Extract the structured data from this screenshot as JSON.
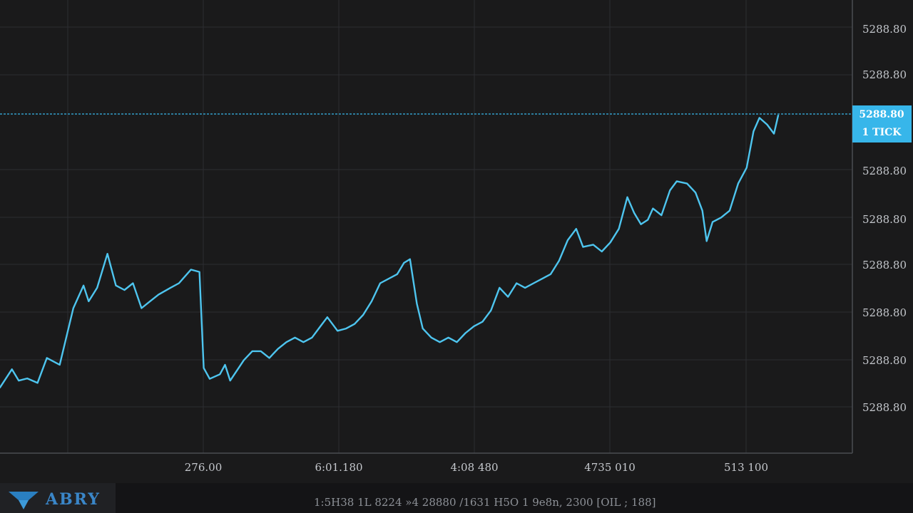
{
  "chart_data": {
    "type": "line",
    "title": "",
    "xlabel": "",
    "ylabel": "",
    "x_tick_labels": [
      "276.00",
      "6:01.180",
      "4:08 480",
      "4735 010",
      "513 100"
    ],
    "y_tick_labels": [
      "5288.80",
      "5288.80",
      "5288.80",
      "5288.80",
      "5288.80",
      "5288.80",
      "5288.80",
      "5288.80",
      "5288.80"
    ],
    "ylim": [
      0,
      100
    ],
    "grid": true,
    "series": [
      {
        "color": "#4ec5ef",
        "values": [
          [
            0,
            14.5
          ],
          [
            1.4,
            18.5
          ],
          [
            2.2,
            16
          ],
          [
            3.2,
            16.5
          ],
          [
            4.4,
            15.5
          ],
          [
            5.5,
            21
          ],
          [
            7.0,
            19.5
          ],
          [
            8.6,
            32
          ],
          [
            9.8,
            37
          ],
          [
            10.4,
            33.5
          ],
          [
            11.4,
            36.5
          ],
          [
            12.6,
            44
          ],
          [
            13.6,
            37
          ],
          [
            14.6,
            36
          ],
          [
            15.6,
            37.5
          ],
          [
            16.6,
            32
          ],
          [
            17.6,
            33.5
          ],
          [
            18.6,
            35
          ],
          [
            20.0,
            36.5
          ],
          [
            21.0,
            37.5
          ],
          [
            22.4,
            40.5
          ],
          [
            23.4,
            40
          ],
          [
            23.9,
            18.8
          ],
          [
            24.6,
            16.4
          ],
          [
            25.8,
            17.4
          ],
          [
            26.4,
            19.5
          ],
          [
            27.0,
            16.0
          ],
          [
            28.6,
            20.5
          ],
          [
            29.6,
            22.5
          ],
          [
            30.6,
            22.5
          ],
          [
            31.6,
            21
          ],
          [
            32.6,
            23
          ],
          [
            33.6,
            24.5
          ],
          [
            34.6,
            25.5
          ],
          [
            35.6,
            24.5
          ],
          [
            36.6,
            25.5
          ],
          [
            37.6,
            28
          ],
          [
            38.4,
            30
          ],
          [
            39.6,
            27
          ],
          [
            40.6,
            27.5
          ],
          [
            41.6,
            28.5
          ],
          [
            42.6,
            30.5
          ],
          [
            43.6,
            33.5
          ],
          [
            44.6,
            37.5
          ],
          [
            46.6,
            39.5
          ],
          [
            47.4,
            42
          ],
          [
            48.1,
            42.8
          ],
          [
            48.9,
            33
          ],
          [
            49.6,
            27.5
          ],
          [
            50.6,
            25.5
          ],
          [
            51.6,
            24.5
          ],
          [
            52.6,
            25.5
          ],
          [
            53.6,
            24.5
          ],
          [
            54.6,
            26.5
          ],
          [
            55.6,
            28
          ],
          [
            56.6,
            29
          ],
          [
            57.6,
            31.5
          ],
          [
            58.6,
            36.5
          ],
          [
            59.6,
            34.5
          ],
          [
            60.6,
            37.5
          ],
          [
            61.6,
            36.5
          ],
          [
            62.6,
            37.5
          ],
          [
            64.6,
            39.5
          ],
          [
            65.6,
            42.5
          ],
          [
            66.6,
            47
          ],
          [
            67.6,
            49.5
          ],
          [
            68.4,
            45.5
          ],
          [
            69.6,
            46
          ],
          [
            70.6,
            44.5
          ],
          [
            71.6,
            46.5
          ],
          [
            72.6,
            49.5
          ],
          [
            73.6,
            56.5
          ],
          [
            74.4,
            53
          ],
          [
            75.2,
            50.5
          ],
          [
            76.0,
            51.5
          ],
          [
            76.6,
            54
          ],
          [
            77.6,
            52.5
          ],
          [
            78.6,
            58
          ],
          [
            79.4,
            60
          ],
          [
            80.6,
            59.5
          ],
          [
            81.6,
            57.5
          ],
          [
            82.4,
            53.5
          ],
          [
            82.9,
            46.8
          ],
          [
            83.6,
            51
          ],
          [
            84.6,
            52
          ],
          [
            85.6,
            53.5
          ],
          [
            86.6,
            59.5
          ],
          [
            87.6,
            63
          ],
          [
            88.4,
            71
          ],
          [
            89.1,
            74
          ],
          [
            90.0,
            72.5
          ],
          [
            90.8,
            70.5
          ],
          [
            91.3,
            74.5
          ]
        ]
      }
    ],
    "reference_line": {
      "label_lines": [
        "5288.80",
        "1 TICK"
      ],
      "color": "#37b6ea"
    }
  },
  "footer": {
    "logo_text": "ABRY",
    "status_text": "1:5H38 1L 8224 »4 28880 /1631 H5O 1 9e8n, 2300 [OIL ; 188]"
  },
  "colors": {
    "background": "#1a1a1b",
    "line": "#4ec5ef",
    "accent": "#37b6ea",
    "logo": "#3a86c8"
  }
}
